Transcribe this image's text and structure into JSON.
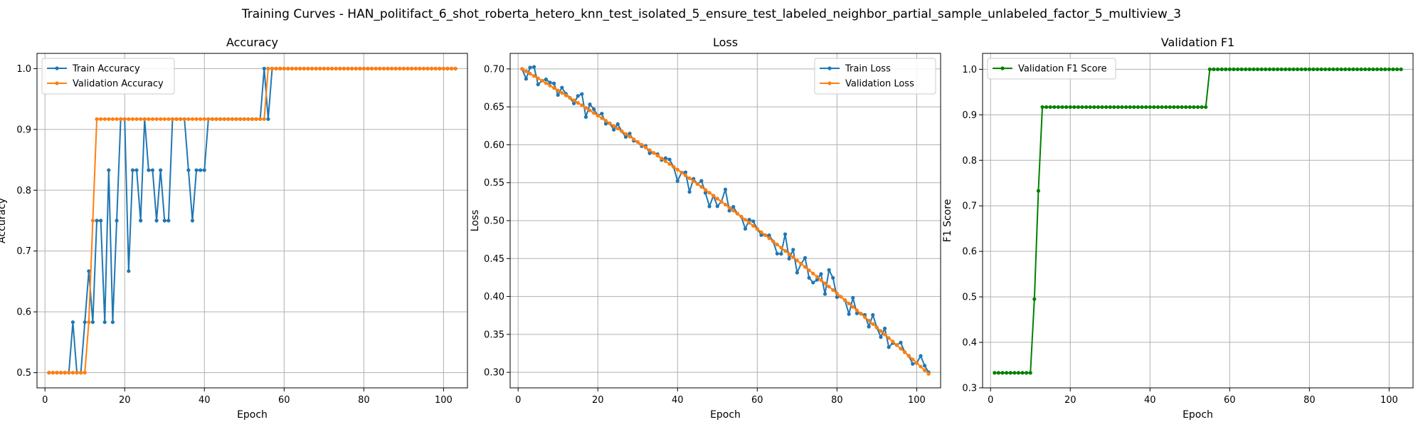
{
  "figure": {
    "title": "Training Curves - HAN_politifact_6_shot_roberta_hetero_knn_test_isolated_5_ensure_test_labeled_neighbor_partial_sample_unlabeled_factor_5_multiview_3"
  },
  "colors": {
    "blue": "#1f77b4",
    "orange": "#ff7f0e",
    "green": "#008000",
    "grid": "#b0b0b0"
  },
  "chart_data": [
    {
      "type": "line",
      "title": "Accuracy",
      "xlabel": "Epoch",
      "ylabel": "Accuracy",
      "xlim": [
        -2,
        106
      ],
      "ylim": [
        0.475,
        1.025
      ],
      "xticks": [
        0,
        20,
        40,
        60,
        80,
        100
      ],
      "yticks": [
        0.5,
        0.6,
        0.7,
        0.8,
        0.9,
        1.0
      ],
      "ytick_labels": [
        "0.5",
        "0.6",
        "0.7",
        "0.8",
        "0.9",
        "1.0"
      ],
      "grid": true,
      "legend": "upper-left",
      "series": [
        {
          "name": "Train Accuracy",
          "color": "#1f77b4",
          "x_start": 1,
          "x_end": 103,
          "values_head": [
            0.5,
            0.5,
            0.5,
            0.5,
            0.5,
            0.5,
            0.583,
            0.5,
            0.5,
            0.583,
            0.667,
            0.583,
            0.75,
            0.75,
            0.583,
            0.833,
            0.583,
            0.75,
            0.917,
            0.917,
            0.667,
            0.833,
            0.833,
            0.75,
            0.917,
            0.833,
            0.833,
            0.75,
            0.833,
            0.75,
            0.75,
            0.917,
            0.917,
            0.917,
            0.917,
            0.833,
            0.75,
            0.833,
            0.833,
            0.833,
            0.917,
            0.917,
            0.917,
            0.917,
            0.917,
            0.917,
            0.917,
            0.917,
            0.917,
            0.917,
            0.917,
            0.917,
            0.917,
            0.917,
            1.0,
            0.917
          ],
          "tail_value": 1.0
        },
        {
          "name": "Validation Accuracy",
          "color": "#ff7f0e",
          "x_start": 1,
          "x_end": 103,
          "values_head": [
            0.5,
            0.5,
            0.5,
            0.5,
            0.5,
            0.5,
            0.5,
            0.5,
            0.5,
            0.5,
            0.583,
            0.75,
            0.917,
            0.917,
            0.917,
            0.917,
            0.917,
            0.917,
            0.917,
            0.917,
            0.917,
            0.917,
            0.917,
            0.917,
            0.917,
            0.917,
            0.917,
            0.917,
            0.917,
            0.917,
            0.917,
            0.917,
            0.917,
            0.917,
            0.917,
            0.917,
            0.917,
            0.917,
            0.917,
            0.917,
            0.917,
            0.917,
            0.917,
            0.917,
            0.917,
            0.917,
            0.917,
            0.917,
            0.917,
            0.917,
            0.917,
            0.917,
            0.917,
            0.917,
            0.917
          ],
          "tail_value": 1.0
        }
      ]
    },
    {
      "type": "line",
      "title": "Loss",
      "xlabel": "Epoch",
      "ylabel": "Loss",
      "xlim": [
        -2,
        106
      ],
      "ylim": [
        0.2795,
        0.7205
      ],
      "xticks": [
        0,
        20,
        40,
        60,
        80,
        100
      ],
      "yticks": [
        0.3,
        0.35,
        0.4,
        0.45,
        0.5,
        0.55,
        0.6,
        0.65,
        0.7
      ],
      "ytick_labels": [
        "0.30",
        "0.35",
        "0.40",
        "0.45",
        "0.50",
        "0.55",
        "0.60",
        "0.65",
        "0.70"
      ],
      "grid": true,
      "legend": "upper-right",
      "series": [
        {
          "name": "Train Loss",
          "color": "#1f77b4",
          "x_start": 1,
          "x_end": 103,
          "trend": {
            "start": 0.7,
            "end": 0.298,
            "curve": 0.24
          },
          "noise": [
            0.0,
            -0.01,
            0.008,
            0.012,
            -0.008,
            0.0,
            0.005,
            0.004,
            0.006,
            -0.006,
            0.007,
            0.002,
            0.0,
            -0.004,
            0.009,
            0.015,
            -0.012,
            0.008,
            0.005,
            0.0,
            0.006,
            -0.004,
            0.0,
            -0.005,
            0.006,
            0.0,
            -0.004,
            0.004,
            -0.002,
            0.0,
            -0.002,
            0.002,
            -0.004,
            0.0,
            0.002,
            -0.002,
            0.004,
            0.006,
            0.0,
            -0.015,
            0.0,
            0.004,
            -0.018,
            0.003,
            0.0,
            0.008,
            -0.004,
            -0.018,
            0.0,
            -0.01,
            0.0,
            0.02,
            -0.004,
            0.005,
            0.0,
            0.0,
            -0.012,
            0.004,
            0.006,
            0.0,
            -0.004,
            0.0,
            0.004,
            0.0,
            -0.012,
            -0.008,
            0.022,
            -0.006,
            0.01,
            -0.016,
            0.0,
            0.012,
            -0.01,
            -0.012,
            -0.004,
            0.008,
            -0.014,
            0.022,
            0.016,
            -0.005,
            0.0,
            0.0,
            -0.014,
            0.012,
            -0.004,
            0.0,
            0.003,
            -0.008,
            0.012,
            0.0,
            -0.008,
            0.008,
            -0.012,
            -0.002,
            0.0,
            0.008,
            0.0,
            0.0,
            -0.006,
            0.0,
            0.014,
            0.006,
            0.002
          ]
        },
        {
          "name": "Validation Loss",
          "color": "#ff7f0e",
          "x_start": 1,
          "x_end": 103,
          "trend": {
            "start": 0.7,
            "end": 0.298,
            "curve": 0.24
          },
          "noise": []
        }
      ]
    },
    {
      "type": "line",
      "title": "Validation F1",
      "xlabel": "Epoch",
      "ylabel": "F1 Score",
      "xlim": [
        -2,
        106
      ],
      "ylim": [
        0.3,
        1.035
      ],
      "xticks": [
        0,
        20,
        40,
        60,
        80,
        100
      ],
      "yticks": [
        0.3,
        0.4,
        0.5,
        0.6,
        0.7,
        0.8,
        0.9,
        1.0
      ],
      "ytick_labels": [
        "0.3",
        "0.4",
        "0.5",
        "0.6",
        "0.7",
        "0.8",
        "0.9",
        "1.0"
      ],
      "grid": true,
      "legend": "upper-left",
      "series": [
        {
          "name": "Validation F1 Score",
          "color": "#008000",
          "x_start": 1,
          "x_end": 103,
          "values_head": [
            0.333,
            0.333,
            0.333,
            0.333,
            0.333,
            0.333,
            0.333,
            0.333,
            0.333,
            0.333,
            0.495,
            0.733,
            0.917,
            0.917,
            0.917,
            0.917,
            0.917,
            0.917,
            0.917,
            0.917,
            0.917,
            0.917,
            0.917,
            0.917,
            0.917,
            0.917,
            0.917,
            0.917,
            0.917,
            0.917,
            0.917,
            0.917,
            0.917,
            0.917,
            0.917,
            0.917,
            0.917,
            0.917,
            0.917,
            0.917,
            0.917,
            0.917,
            0.917,
            0.917,
            0.917,
            0.917,
            0.917,
            0.917,
            0.917,
            0.917,
            0.917,
            0.917,
            0.917,
            0.917
          ],
          "tail_value": 1.0
        }
      ]
    }
  ]
}
